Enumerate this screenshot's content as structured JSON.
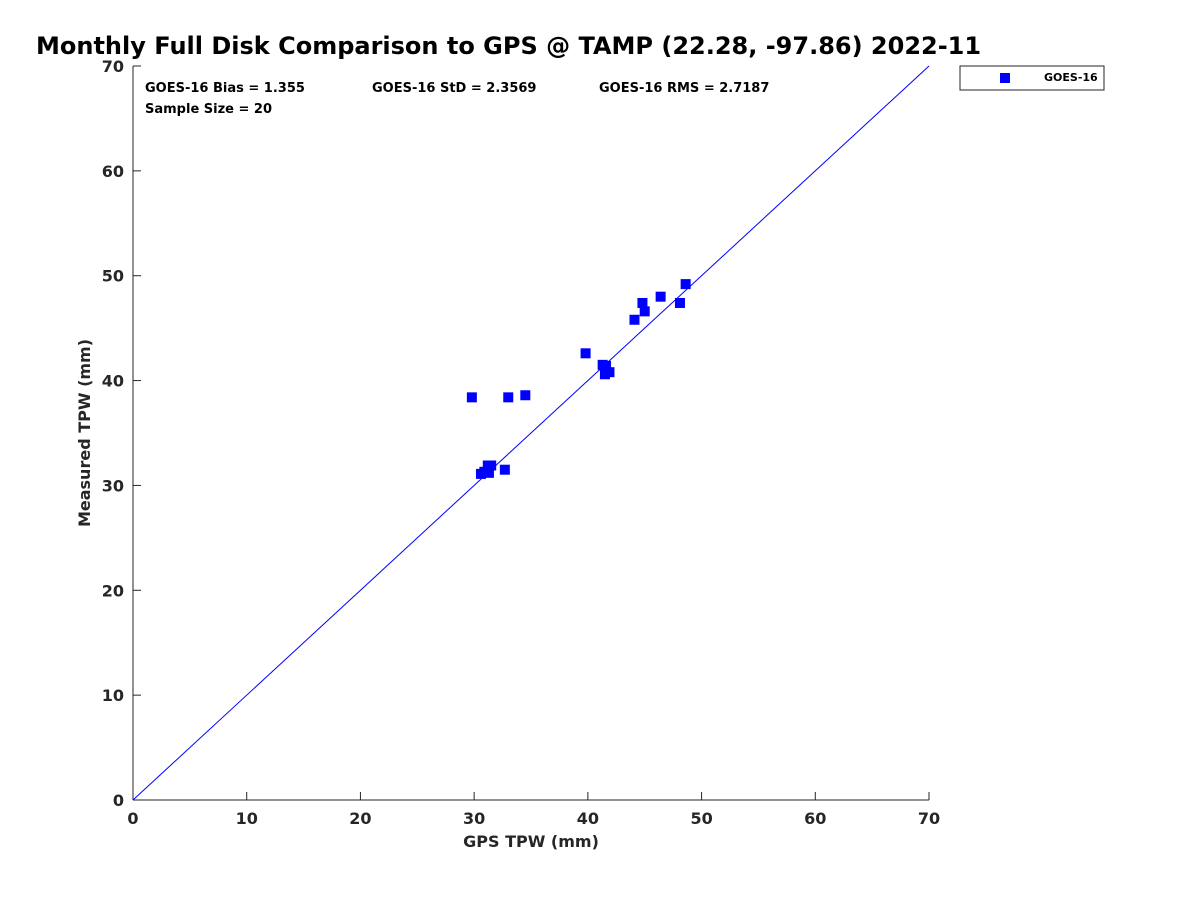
{
  "chart_data": {
    "type": "scatter",
    "title": "Monthly Full Disk Comparison to GPS @ TAMP (22.28, -97.86) 2022-11",
    "xlabel": "GPS TPW (mm)",
    "ylabel": "Measured TPW (mm)",
    "xlim": [
      0,
      70
    ],
    "ylim": [
      0,
      70
    ],
    "xticks": [
      0,
      10,
      20,
      30,
      40,
      50,
      60,
      70
    ],
    "yticks": [
      0,
      10,
      20,
      30,
      40,
      50,
      60,
      70
    ],
    "grid": false,
    "legend_position": "outside-top-right",
    "reference_line": {
      "name": "1:1 line",
      "from": [
        0,
        0
      ],
      "to": [
        70,
        70
      ],
      "color": "#0000ff"
    },
    "stats": {
      "bias": "GOES-16 Bias = 1.355",
      "std": "GOES-16 StD = 2.3569",
      "rms": "GOES-16 RMS = 2.7187",
      "sample_size": "Sample Size = 20"
    },
    "series": [
      {
        "name": "GOES-16",
        "color": "#0000ff",
        "marker": "square",
        "points": [
          {
            "x": 29.8,
            "y": 38.4
          },
          {
            "x": 33.0,
            "y": 38.4
          },
          {
            "x": 34.5,
            "y": 38.6
          },
          {
            "x": 30.6,
            "y": 31.1
          },
          {
            "x": 30.9,
            "y": 31.3
          },
          {
            "x": 31.2,
            "y": 31.9
          },
          {
            "x": 31.3,
            "y": 31.2
          },
          {
            "x": 31.5,
            "y": 31.9
          },
          {
            "x": 32.7,
            "y": 31.5
          },
          {
            "x": 39.8,
            "y": 42.6
          },
          {
            "x": 41.3,
            "y": 41.5
          },
          {
            "x": 41.6,
            "y": 41.4
          },
          {
            "x": 41.5,
            "y": 40.6
          },
          {
            "x": 41.9,
            "y": 40.8
          },
          {
            "x": 44.1,
            "y": 45.8
          },
          {
            "x": 44.8,
            "y": 47.4
          },
          {
            "x": 45.0,
            "y": 46.6
          },
          {
            "x": 46.4,
            "y": 48.0
          },
          {
            "x": 48.1,
            "y": 47.4
          },
          {
            "x": 48.6,
            "y": 49.2
          }
        ]
      }
    ]
  }
}
